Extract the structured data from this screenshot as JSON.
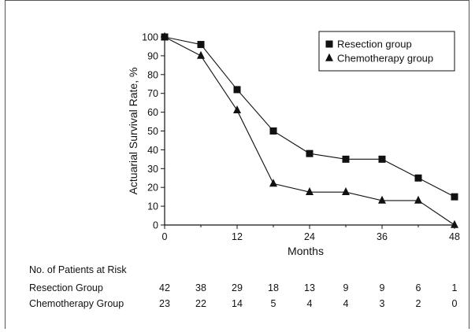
{
  "chart_data": {
    "type": "line",
    "xlabel": "Months",
    "ylabel": "Actuarial Survival Rate, %",
    "xlim": [
      0,
      48
    ],
    "ylim": [
      0,
      100
    ],
    "x_ticks": [
      0,
      12,
      24,
      36,
      48
    ],
    "y_ticks": [
      0,
      10,
      20,
      30,
      40,
      50,
      60,
      70,
      80,
      90,
      100
    ],
    "grid": false,
    "legend_position": "top-right",
    "series": [
      {
        "name": "Resection group",
        "marker": "square",
        "x": [
          0,
          6,
          12,
          18,
          24,
          30,
          36,
          42,
          48
        ],
        "y": [
          100,
          96,
          72,
          50,
          38,
          35,
          35,
          25,
          15
        ]
      },
      {
        "name": "Chemotherapy group",
        "marker": "triangle",
        "x": [
          0,
          6,
          12,
          18,
          24,
          30,
          36,
          42,
          48
        ],
        "y": [
          100,
          90,
          61,
          22,
          17.5,
          17.5,
          13,
          13,
          0
        ]
      }
    ]
  },
  "risk_table": {
    "title": "No. of Patients at Risk",
    "rows": [
      {
        "label": "Resection Group",
        "values": [
          42,
          38,
          29,
          18,
          13,
          9,
          9,
          6,
          1
        ]
      },
      {
        "label": "Chemotherapy Group",
        "values": [
          23,
          22,
          14,
          5,
          4,
          4,
          3,
          2,
          0
        ]
      }
    ]
  }
}
